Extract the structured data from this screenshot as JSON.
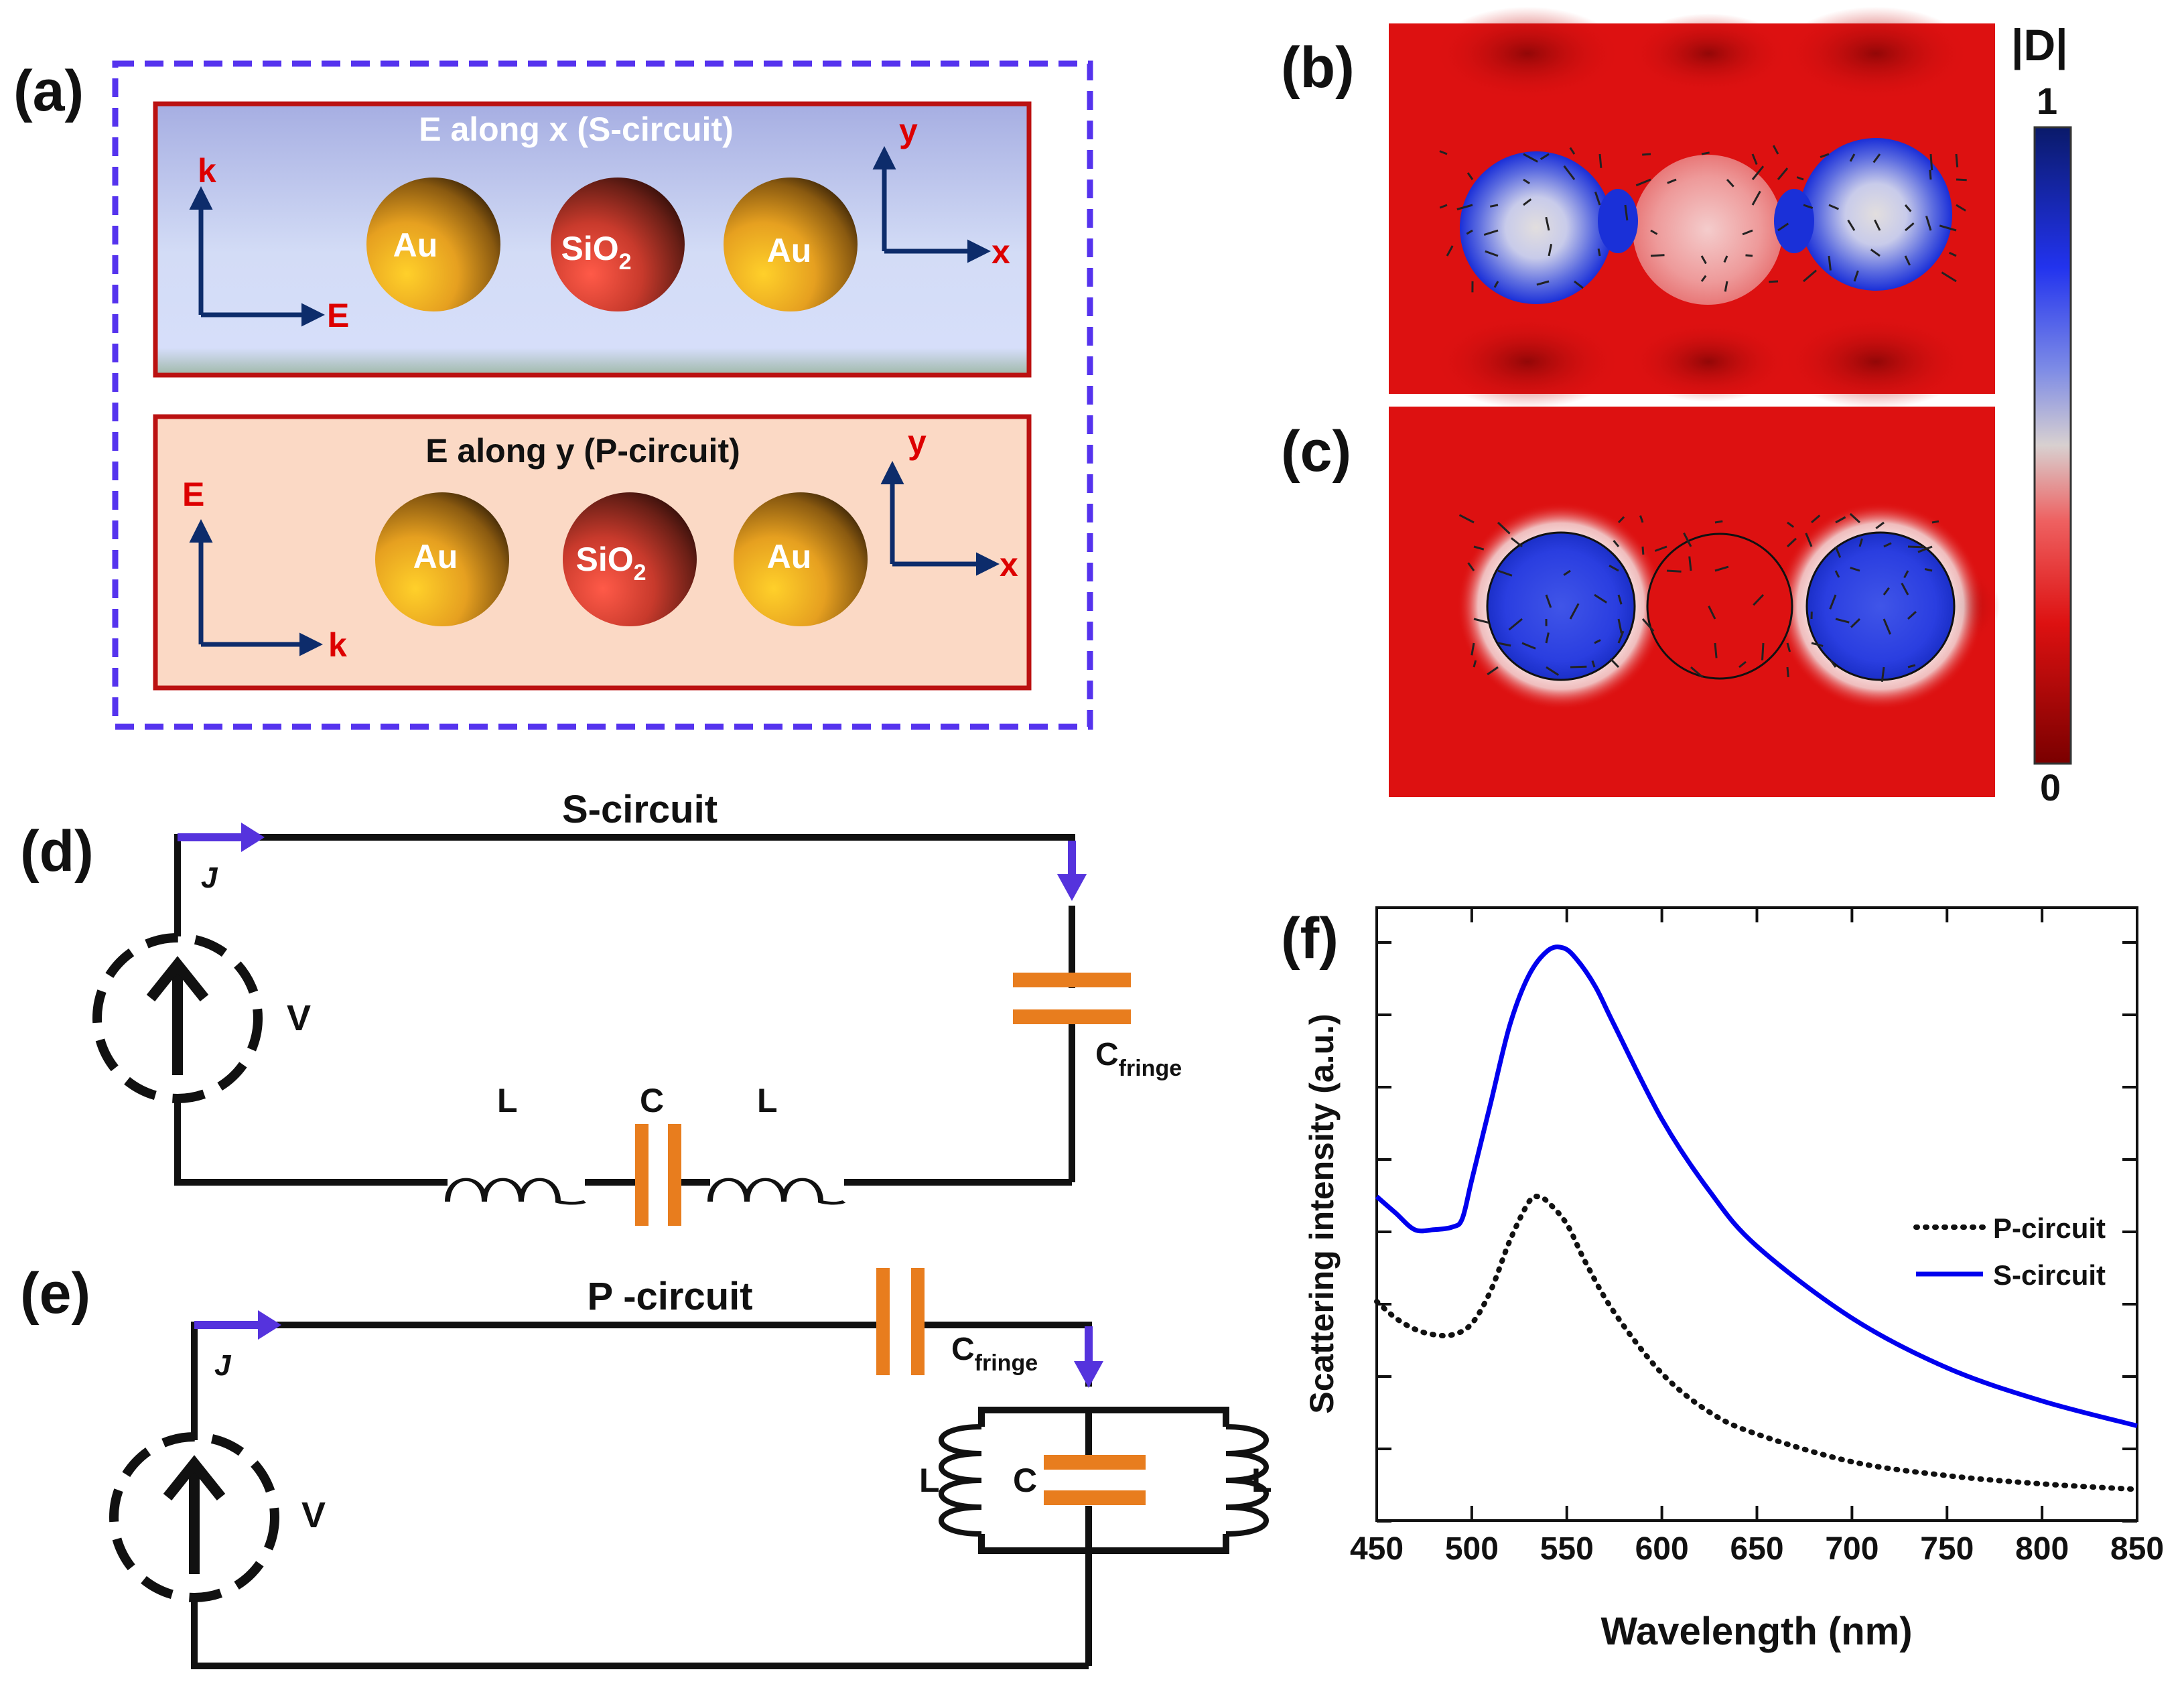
{
  "panel_labels": {
    "a": "(a)",
    "b": "(b)",
    "c": "(c)",
    "d": "(d)",
    "e": "(e)",
    "f": "(f)"
  },
  "panel_a": {
    "s_box": {
      "title": "E along  x (S-circuit)",
      "left_axes": {
        "up": "k",
        "right": "E"
      },
      "right_axes": {
        "up": "y",
        "right": "x"
      },
      "spheres": {
        "au_left": "Au",
        "sio2": "SiO",
        "sio2_sub": "2",
        "au_right": "Au"
      }
    },
    "p_box": {
      "title": "E along  y (P-circuit)",
      "left_axes": {
        "up": "E",
        "right": "k"
      },
      "right_axes": {
        "up": "y",
        "right": "x"
      },
      "spheres": {
        "au_left": "Au",
        "sio2": "SiO",
        "sio2_sub": "2",
        "au_right": "Au"
      }
    }
  },
  "colorbar": {
    "title": "|D|",
    "max_label": "1",
    "min_label": "0"
  },
  "circuit_d": {
    "title": "S-circuit",
    "current_label": "J",
    "source_label": "V",
    "inductor_left": "L",
    "capacitor": "C",
    "inductor_right": "L",
    "fringe": "C",
    "fringe_sub": "fringe"
  },
  "circuit_e": {
    "title": "P -circuit",
    "current_label": "J",
    "source_label": "V",
    "fringe": "C",
    "fringe_sub": "fringe",
    "inductor_left": "L",
    "capacitor": "C",
    "inductor_right": "L"
  },
  "colors": {
    "s_series": "#0000ee",
    "p_series": "#111111",
    "capacitor": "#e87d1e",
    "current_arrow": "#5533dd",
    "axis_arrow": "#0d2c6b",
    "axis_label": "#dd0000",
    "frame": "#5533ee",
    "field_bg": "#dd1111"
  },
  "chart_data": {
    "type": "line",
    "title": "",
    "xlabel": "Wavelength (nm)",
    "ylabel": "Scattering intensity (a.u.)",
    "xlim": [
      450,
      850
    ],
    "ylim": [
      0,
      1
    ],
    "xticks": [
      450,
      500,
      550,
      600,
      650,
      700,
      750,
      800,
      850
    ],
    "y_tick_labels_shown": false,
    "legend_position": "right",
    "series": [
      {
        "name": "P-circuit",
        "style": "dotted",
        "x": [
          450,
          460,
          470,
          480,
          490,
          500,
          510,
          520,
          530,
          535,
          540,
          550,
          560,
          575,
          600,
          625,
          650,
          700,
          750,
          800,
          850
        ],
        "y": [
          0.36,
          0.33,
          0.31,
          0.3,
          0.3,
          0.32,
          0.38,
          0.47,
          0.54,
          0.55,
          0.54,
          0.5,
          0.43,
          0.34,
          0.23,
          0.16,
          0.12,
          0.07,
          0.045,
          0.03,
          0.02
        ]
      },
      {
        "name": "S-circuit",
        "style": "solid",
        "x": [
          450,
          460,
          470,
          480,
          490,
          495,
          500,
          510,
          520,
          530,
          540,
          548,
          555,
          565,
          575,
          600,
          625,
          650,
          700,
          750,
          800,
          850
        ],
        "y": [
          0.55,
          0.52,
          0.49,
          0.49,
          0.495,
          0.51,
          0.58,
          0.72,
          0.86,
          0.95,
          0.995,
          1.0,
          0.98,
          0.93,
          0.86,
          0.69,
          0.56,
          0.46,
          0.33,
          0.24,
          0.18,
          0.135
        ]
      }
    ]
  }
}
